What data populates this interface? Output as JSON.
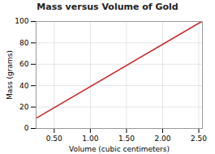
{
  "chart_data": {
    "type": "line",
    "title": "Mass versus Volume of Gold",
    "xlabel": "Volume (cubic centimeters)",
    "ylabel": "Mass (grams)",
    "x": [
      0.26,
      2.54
    ],
    "values": [
      10,
      100
    ],
    "color": "#cc2222",
    "xlim": [
      0.25,
      2.55
    ],
    "ylim": [
      0,
      100
    ],
    "xticks": [
      {
        "value": 0.5,
        "label": "0.50"
      },
      {
        "value": 1.0,
        "label": "1.00"
      },
      {
        "value": 1.5,
        "label": "1.50"
      },
      {
        "value": 2.0,
        "label": "2.00"
      },
      {
        "value": 2.5,
        "label": "2.50"
      }
    ],
    "yticks": [
      0,
      20,
      40,
      60,
      80,
      100
    ],
    "grid": true
  }
}
